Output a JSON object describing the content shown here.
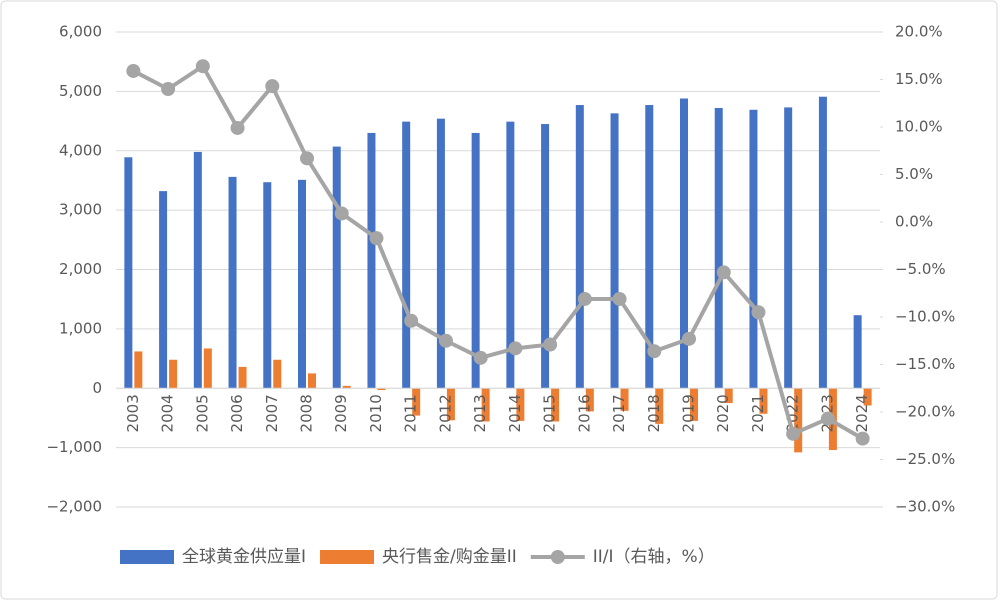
{
  "chart_data": {
    "type": "bar-line",
    "categories": [
      "2003",
      "2004",
      "2005",
      "2006",
      "2007",
      "2008",
      "2009",
      "2010",
      "2011",
      "2012",
      "2013",
      "2014",
      "2015",
      "2016",
      "2017",
      "2018",
      "2019",
      "2020",
      "2021",
      "2022",
      "2023",
      "2024"
    ],
    "series": [
      {
        "name": "全球黄金供应量I",
        "color": "#4472c4",
        "type": "bar",
        "values": [
          3890,
          3320,
          3980,
          3560,
          3470,
          3510,
          4070,
          4300,
          4490,
          4540,
          4300,
          4490,
          4450,
          4770,
          4630,
          4770,
          4880,
          4720,
          4690,
          4730,
          4910,
          1230
        ]
      },
      {
        "name": "央行售金/购金量II",
        "color": "#ed7d31",
        "type": "bar",
        "values": [
          620,
          480,
          670,
          360,
          480,
          250,
          40,
          -30,
          -460,
          -540,
          -560,
          -550,
          -560,
          -390,
          -380,
          -600,
          -550,
          -250,
          -430,
          -1080,
          -1040,
          -290
        ]
      },
      {
        "name": "II/I（右轴，%）",
        "color": "#a5a5a5",
        "type": "line",
        "axis": "y2",
        "values": [
          15.9,
          14.0,
          16.4,
          9.9,
          14.3,
          6.7,
          0.9,
          -1.7,
          -10.4,
          -12.5,
          -14.3,
          -13.3,
          -12.9,
          -8.1,
          -8.1,
          -13.6,
          -12.3,
          -5.3,
          -9.5,
          -22.3,
          -20.7,
          -22.8
        ]
      }
    ],
    "ylim": [
      -2000,
      6000
    ],
    "yticks": [
      {
        "value": -2000,
        "label": "−2,000"
      },
      {
        "value": -1000,
        "label": "−1,000"
      },
      0,
      {
        "value": 1000,
        "label": "1,000"
      },
      {
        "value": 2000,
        "label": "2,000"
      },
      {
        "value": 3000,
        "label": "3,000"
      },
      {
        "value": 4000,
        "label": "4,000"
      },
      {
        "value": 5000,
        "label": "5,000"
      },
      {
        "value": 6000,
        "label": "6,000"
      }
    ],
    "y2lim": [
      -30,
      20
    ],
    "y2ticks": [
      {
        "value": -30,
        "label": "−30.0%"
      },
      {
        "value": -25,
        "label": "−25.0%"
      },
      {
        "value": -20,
        "label": "−20.0%"
      },
      {
        "value": -15,
        "label": "−15.0%"
      },
      {
        "value": -10,
        "label": "−10.0%"
      },
      {
        "value": -5,
        "label": "−5.0%"
      },
      {
        "value": 0,
        "label": "0.0%"
      },
      {
        "value": 5,
        "label": "5.0%"
      },
      {
        "value": 10,
        "label": "10.0%"
      },
      {
        "value": 15,
        "label": "15.0%"
      },
      {
        "value": 20,
        "label": "20.0%"
      }
    ],
    "grid": true,
    "legend": "bottom"
  }
}
